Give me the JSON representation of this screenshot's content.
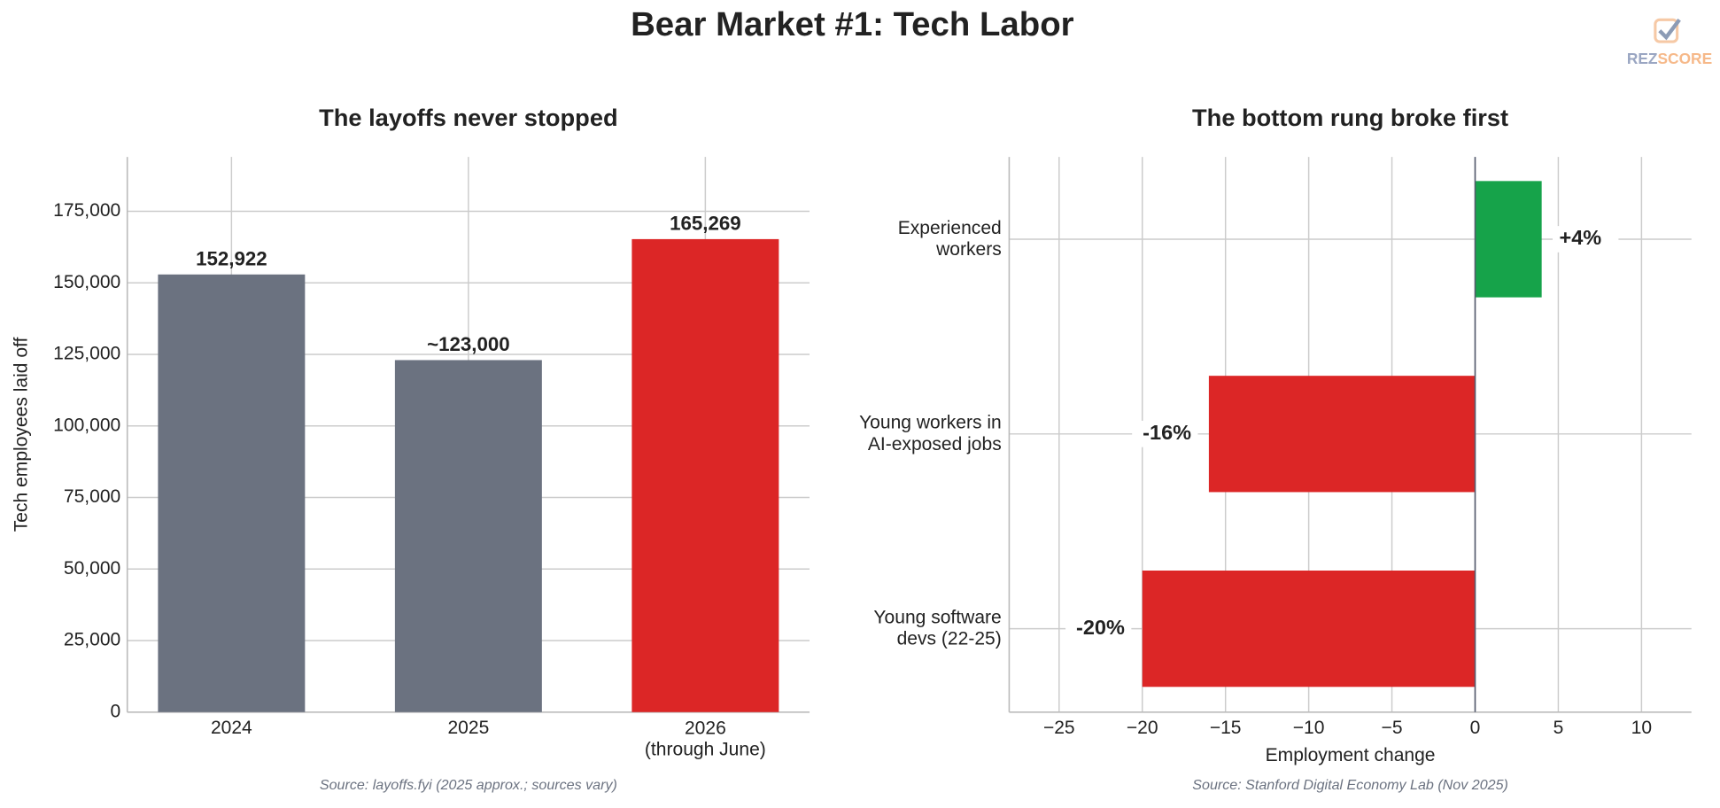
{
  "title": "Bear Market #1: Tech Labor",
  "logo": [
    "REZ",
    "SCORE"
  ],
  "chart_data": [
    {
      "type": "bar",
      "title": "The layoffs never stopped",
      "ylabel": "Tech employees laid off",
      "categories": [
        "2024",
        "2025",
        "2026\n(through June)"
      ],
      "values": [
        152922,
        123000,
        165269
      ],
      "value_labels": [
        "152,922",
        "~123,000",
        "165,269"
      ],
      "colors": [
        "#6b7280",
        "#6b7280",
        "#dc2626"
      ],
      "ylim": [
        0,
        194000
      ],
      "yticks": [
        0,
        {
          "value": 25000,
          "label": "25,000"
        },
        {
          "value": 50000,
          "label": "50,000"
        },
        {
          "value": 75000,
          "label": "75,000"
        },
        {
          "value": 100000,
          "label": "100,000"
        },
        {
          "value": 125000,
          "label": "125,000"
        },
        {
          "value": 150000,
          "label": "150,000"
        },
        {
          "value": 175000,
          "label": "175,000"
        }
      ],
      "grid": true,
      "source": "Source: layoffs.fyi (2025 approx.; sources vary)"
    },
    {
      "type": "hbar",
      "title": "The bottom rung broke first",
      "xlabel": "Employment change",
      "categories": [
        "Experienced\nworkers",
        "Young workers in\nAI-exposed jobs",
        "Young software\ndevs (22-25)"
      ],
      "values": [
        4,
        -16,
        -20
      ],
      "value_labels": [
        "+4%",
        "-16%",
        "-20%"
      ],
      "colors": [
        "#16a34a",
        "#dc2626",
        "#dc2626"
      ],
      "xlim": [
        -28,
        13
      ],
      "xticks": [
        {
          "value": -25,
          "label": "−25"
        },
        {
          "value": -20,
          "label": "−20"
        },
        {
          "value": -15,
          "label": "−15"
        },
        {
          "value": -10,
          "label": "−10"
        },
        {
          "value": -5,
          "label": "−5"
        },
        0,
        5,
        10
      ],
      "grid": true,
      "source": "Source: Stanford Digital Economy Lab (Nov 2025)"
    }
  ]
}
